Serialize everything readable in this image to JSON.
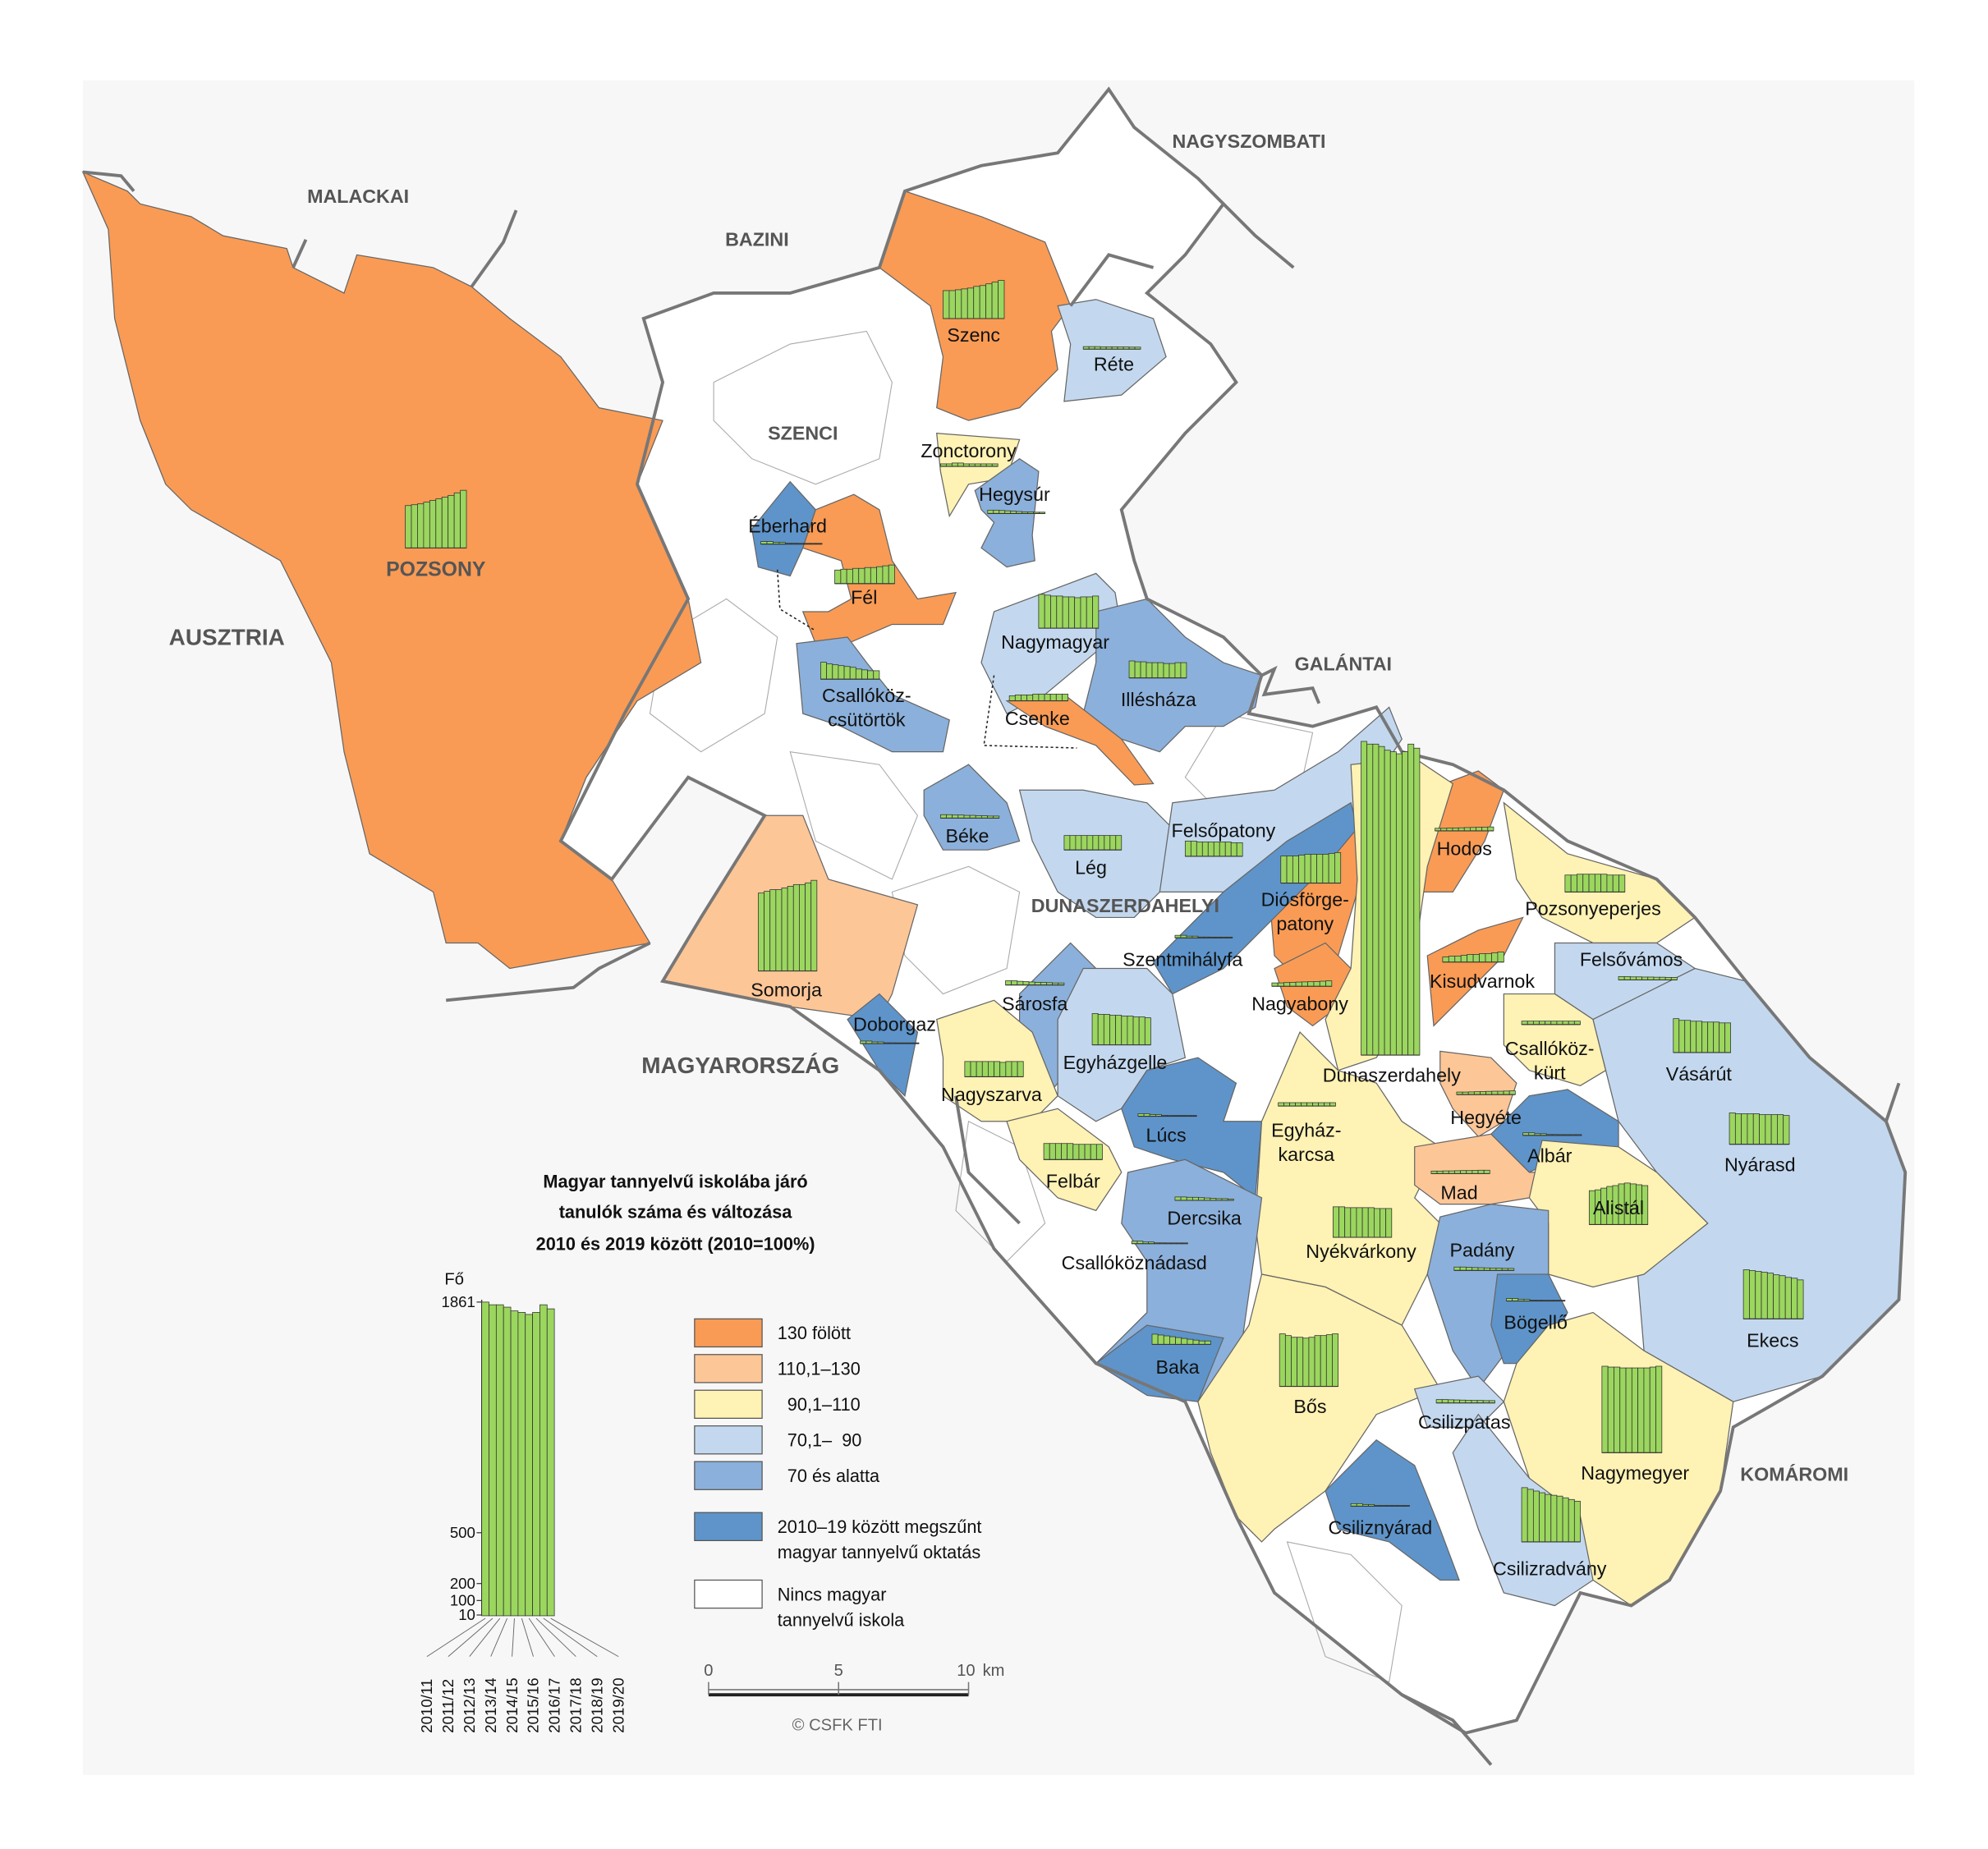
{
  "colors": {
    "over130": "#F99B55",
    "110to130": "#FDC697",
    "90to110": "#FEF2B4",
    "70to90": "#C3D8EF",
    "under70": "#8BB0DB",
    "closed": "#5E94CA",
    "none": "#FFFFFF",
    "bars": "#9BD65E",
    "border": "#777777"
  },
  "districts": {
    "malackai": "MALACKAI",
    "bazini": "BAZINI",
    "nagyszombati": "NAGYSZOMBATI",
    "szenci": "SZENCI",
    "ausztria": "AUSZTRIA",
    "galantai": "GALÁNTAI",
    "dunaszerdahelyi": "DUNASZERDAHELYI",
    "magyarorszag": "MAGYARORSZÁG",
    "komaromi": "KOMÁROMI"
  },
  "municipalities": [
    {
      "name": "POZSONY",
      "category": "over130",
      "students": [
        260,
        265,
        270,
        280,
        290,
        300,
        310,
        320,
        335,
        350
      ]
    },
    {
      "name": "Szenc",
      "category": "over130",
      "students": [
        175,
        175,
        180,
        185,
        190,
        200,
        205,
        215,
        225,
        235
      ]
    },
    {
      "name": "Réte",
      "category": "70to90",
      "students": [
        25,
        25,
        25,
        24,
        24,
        24,
        23,
        23,
        22,
        22
      ]
    },
    {
      "name": "Zonctorony",
      "category": "90to110",
      "students": [
        25,
        25,
        30,
        30,
        25,
        25,
        25,
        25,
        25,
        25
      ]
    },
    {
      "name": "Hegysúr",
      "category": "under70",
      "students": [
        30,
        30,
        28,
        26,
        24,
        22,
        20,
        20,
        18,
        18
      ]
    },
    {
      "name": "Éberhard",
      "category": "closed",
      "students": [
        25,
        25,
        20,
        20,
        15,
        15,
        10,
        0,
        0,
        0
      ]
    },
    {
      "name": "Fél",
      "category": "over130",
      "students": [
        90,
        95,
        95,
        100,
        100,
        105,
        105,
        110,
        115,
        120
      ]
    },
    {
      "name": "Nagymagyar",
      "category": "70to90",
      "students": [
        210,
        205,
        200,
        200,
        195,
        195,
        190,
        195,
        195,
        200
      ]
    },
    {
      "name": "Illésháza",
      "category": "under70",
      "students": [
        110,
        105,
        105,
        100,
        100,
        100,
        95,
        95,
        100,
        100
      ]
    },
    {
      "name": "Csallóköz-",
      "name2": "csütörtök",
      "category": "under70",
      "students": [
        110,
        100,
        95,
        90,
        85,
        80,
        70,
        65,
        60,
        60
      ]
    },
    {
      "name": "Csenke",
      "category": "over130",
      "students": [
        40,
        45,
        45,
        45,
        50,
        50,
        50,
        50,
        50,
        50
      ]
    },
    {
      "name": "Béke",
      "category": "under70",
      "students": [
        30,
        30,
        28,
        28,
        26,
        26,
        24,
        24,
        22,
        22
      ]
    },
    {
      "name": "Lég",
      "category": "70to90",
      "students": [
        95,
        95,
        95,
        95,
        95,
        95,
        95,
        95,
        95,
        95
      ]
    },
    {
      "name": "Felsőpatony",
      "category": "70to90",
      "students": [
        100,
        100,
        95,
        95,
        95,
        95,
        95,
        95,
        90,
        90
      ]
    },
    {
      "name": "Hodos",
      "category": "over130",
      "students": [
        25,
        25,
        26,
        27,
        28,
        29,
        30,
        31,
        32,
        33
      ]
    },
    {
      "name": "Diósförge-",
      "name2": "patony",
      "category": "over130",
      "students": [
        170,
        170,
        170,
        175,
        180,
        180,
        180,
        180,
        185,
        190
      ]
    },
    {
      "name": "Pozsonyeperjes",
      "category": "90to110",
      "students": [
        110,
        110,
        115,
        115,
        115,
        115,
        115,
        110,
        110,
        110
      ]
    },
    {
      "name": "Szentmihályfa",
      "category": "closed",
      "students": [
        25,
        25,
        20,
        20,
        15,
        15,
        10,
        10,
        0,
        0
      ]
    },
    {
      "name": "Felsővámos",
      "category": "70to90",
      "students": [
        30,
        30,
        28,
        28,
        27,
        27,
        26,
        26,
        25,
        25
      ]
    },
    {
      "name": "Kisudvarnok",
      "category": "over130",
      "students": [
        40,
        45,
        45,
        50,
        55,
        55,
        60,
        60,
        65,
        70
      ]
    },
    {
      "name": "Nagyabony",
      "category": "over130",
      "students": [
        30,
        30,
        32,
        33,
        35,
        36,
        37,
        38,
        40,
        42
      ]
    },
    {
      "name": "Dunaszerdahely",
      "category": "90to110",
      "students": [
        1861,
        1845,
        1845,
        1831,
        1809,
        1800,
        1788,
        1800,
        1845,
        1821
      ]
    },
    {
      "name": "Somorja",
      "category": "110to130",
      "students": [
        470,
        480,
        490,
        490,
        500,
        510,
        520,
        520,
        530,
        545
      ]
    },
    {
      "name": "Doborgaz",
      "category": "closed",
      "students": [
        25,
        25,
        20,
        20,
        15,
        15,
        10,
        10,
        0,
        0
      ]
    },
    {
      "name": "Sárosfa",
      "category": "under70",
      "students": [
        35,
        35,
        32,
        30,
        28,
        26,
        25,
        24,
        22,
        22
      ]
    },
    {
      "name": "Egyházgelle",
      "category": "70to90",
      "students": [
        195,
        190,
        190,
        185,
        185,
        180,
        180,
        175,
        175,
        170
      ]
    },
    {
      "name": "Csallóköz-",
      "name2": "kürt",
      "category": "90to110",
      "students": [
        30,
        30,
        30,
        30,
        30,
        30,
        30,
        30,
        30,
        30
      ]
    },
    {
      "name": "Vásárút",
      "category": "70to90",
      "students": [
        210,
        200,
        200,
        195,
        195,
        190,
        190,
        190,
        185,
        185
      ]
    },
    {
      "name": "Nagyszarva",
      "category": "90to110",
      "students": [
        100,
        100,
        100,
        100,
        100,
        100,
        95,
        100,
        100,
        100
      ]
    },
    {
      "name": "Hegyéte",
      "category": "110to130",
      "students": [
        25,
        25,
        26,
        27,
        28,
        29,
        30,
        30,
        31,
        32
      ]
    },
    {
      "name": "Lúcs",
      "category": "closed",
      "students": [
        25,
        25,
        20,
        20,
        15,
        15,
        10,
        10,
        0,
        0
      ]
    },
    {
      "name": "Egyház-",
      "name2": "karcsa",
      "category": "90to110",
      "students": [
        30,
        30,
        30,
        30,
        30,
        30,
        30,
        30,
        30,
        30
      ]
    },
    {
      "name": "Albár",
      "category": "closed",
      "students": [
        25,
        25,
        20,
        20,
        15,
        15,
        10,
        10,
        0,
        0
      ]
    },
    {
      "name": "Nyárasd",
      "category": "70to90",
      "students": [
        195,
        190,
        190,
        190,
        190,
        185,
        185,
        185,
        185,
        180
      ]
    },
    {
      "name": "Felbár",
      "category": "90to110",
      "students": [
        105,
        105,
        105,
        105,
        105,
        100,
        100,
        100,
        100,
        100
      ]
    },
    {
      "name": "Mad",
      "category": "110to130",
      "students": [
        25,
        25,
        26,
        26,
        27,
        28,
        28,
        29,
        30,
        30
      ]
    },
    {
      "name": "Alistál",
      "category": "90to110",
      "students": [
        210,
        215,
        225,
        235,
        240,
        250,
        255,
        250,
        245,
        240
      ]
    },
    {
      "name": "Dercsika",
      "category": "under70",
      "students": [
        30,
        30,
        28,
        28,
        26,
        24,
        22,
        20,
        20,
        18
      ]
    },
    {
      "name": "Nyékvárkony",
      "category": "90to110",
      "students": [
        190,
        190,
        185,
        185,
        185,
        185,
        185,
        180,
        180,
        180
      ]
    },
    {
      "name": "Padány",
      "category": "under70",
      "students": [
        30,
        30,
        28,
        27,
        26,
        25,
        24,
        23,
        22,
        22
      ]
    },
    {
      "name": "Csallóköznádasd",
      "category": "closed",
      "students": [
        25,
        25,
        20,
        20,
        15,
        15,
        10,
        10,
        0,
        0
      ]
    },
    {
      "name": "Bögellő",
      "category": "closed",
      "students": [
        25,
        25,
        20,
        20,
        15,
        15,
        10,
        10,
        0,
        0
      ]
    },
    {
      "name": "Ekecs",
      "category": "70to90",
      "students": [
        300,
        295,
        290,
        285,
        280,
        270,
        265,
        255,
        250,
        240
      ]
    },
    {
      "name": "Baka",
      "category": "closed",
      "students": [
        70,
        65,
        60,
        55,
        50,
        45,
        40,
        35,
        30,
        30
      ]
    },
    {
      "name": "Bős",
      "category": "90to110",
      "students": [
        320,
        310,
        300,
        300,
        295,
        300,
        310,
        310,
        315,
        320
      ]
    },
    {
      "name": "Csilizpatas",
      "category": "70to90",
      "students": [
        30,
        30,
        29,
        28,
        27,
        26,
        25,
        25,
        24,
        24
      ]
    },
    {
      "name": "Nagymegyer",
      "category": "90to110",
      "students": [
        520,
        515,
        515,
        510,
        510,
        510,
        510,
        510,
        515,
        520
      ]
    },
    {
      "name": "Csiliznyárad",
      "category": "closed",
      "students": [
        25,
        25,
        20,
        20,
        15,
        15,
        10,
        10,
        0,
        0
      ]
    },
    {
      "name": "Csilizradvány",
      "category": "70to90",
      "students": [
        330,
        320,
        310,
        300,
        290,
        285,
        280,
        270,
        260,
        250
      ]
    }
  ],
  "legend": {
    "title_lines": [
      "Magyar tannyelvű iskolába járó",
      "tanulók száma és változása",
      "2010 és 2019 között (2010=100%)"
    ],
    "unit": "Fő",
    "ticks": [
      "1861",
      "500",
      "200",
      "100",
      "10"
    ],
    "years": [
      "2010/11",
      "2011/12",
      "2012/13",
      "2013/14",
      "2014/15",
      "2015/16",
      "2016/17",
      "2017/18",
      "2018/19",
      "2019/20"
    ],
    "sample_students": [
      1861,
      1845,
      1845,
      1831,
      1809,
      1800,
      1788,
      1800,
      1845,
      1821
    ],
    "classes": [
      {
        "key": "over130",
        "lines": [
          "130 fölött"
        ]
      },
      {
        "key": "110to130",
        "lines": [
          "110,1–130"
        ]
      },
      {
        "key": "90to110",
        "lines": [
          "  90,1–110"
        ]
      },
      {
        "key": "70to90",
        "lines": [
          "  70,1–  90"
        ]
      },
      {
        "key": "under70",
        "lines": [
          "  70 és alatta"
        ]
      },
      {
        "key": "closed",
        "lines": [
          "2010–19 között megszűnt",
          "magyar tannyelvű oktatás"
        ]
      },
      {
        "key": "none",
        "lines": [
          "Nincs magyar",
          "tannyelvű iskola"
        ]
      }
    ]
  },
  "scalebar": {
    "ticks": [
      "0",
      "5",
      "10"
    ],
    "unit": "km"
  },
  "credit": "© CSFK FTI"
}
